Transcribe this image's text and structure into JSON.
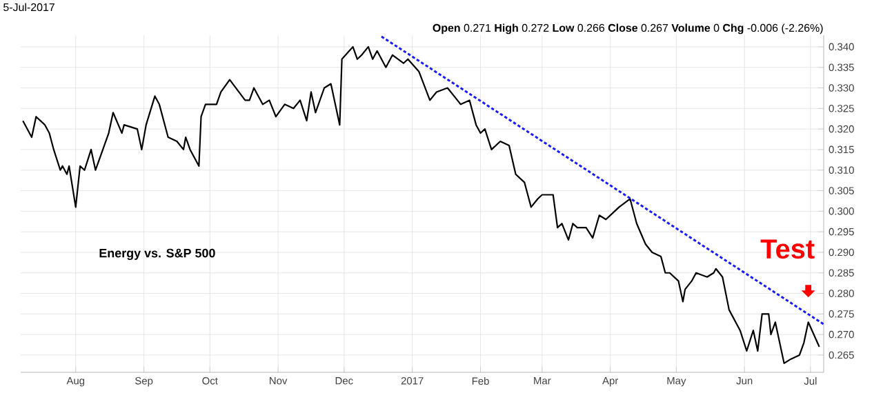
{
  "chart_data": {
    "type": "line",
    "subtitle": "5-Jul-2017",
    "annotations": [
      "Energy vs. S&P 500",
      "**Open** 0.271 **High** 0.272 **Low** 0.266 **Close** 0.267 **Volume** 0 **Chg** -0.006 (-2.26%)",
      {
        "text": "Test",
        "x": "2017-06-30",
        "y": 0.274
      }
    ],
    "xlim": [
      "2016-07-07",
      "2017-07-07"
    ],
    "xticks": [
      {
        "value": "2016-08-01",
        "label": "Aug"
      },
      {
        "value": "2016-09-01",
        "label": "Sep"
      },
      {
        "value": "2016-10-01",
        "label": "Oct"
      },
      {
        "value": "2016-11-01",
        "label": "Nov"
      },
      {
        "value": "2016-12-01",
        "label": "Dec"
      },
      {
        "value": "2017-01-01",
        "label": "2017"
      },
      {
        "value": "2017-02-01",
        "label": "Feb"
      },
      {
        "value": "2017-03-01",
        "label": "Mar"
      },
      {
        "value": "2017-04-01",
        "label": "Apr"
      },
      {
        "value": "2017-05-01",
        "label": "May"
      },
      {
        "value": "2017-06-01",
        "label": "Jun"
      },
      {
        "value": "2017-07-01",
        "label": "Jul"
      }
    ],
    "ylim": [
      0.2608,
      0.3428
    ],
    "yticks": [
      {
        "value": 0.265,
        "label": "0.265"
      },
      {
        "value": 0.27,
        "label": "0.270"
      },
      {
        "value": 0.275,
        "label": "0.275"
      },
      {
        "value": 0.28,
        "label": "0.280"
      },
      {
        "value": 0.285,
        "label": "0.285"
      },
      {
        "value": 0.29,
        "label": "0.290"
      },
      {
        "value": 0.295,
        "label": "0.295"
      },
      {
        "value": 0.3,
        "label": "0.300"
      },
      {
        "value": 0.305,
        "label": "0.305"
      },
      {
        "value": 0.31,
        "label": "0.310"
      },
      {
        "value": 0.315,
        "label": "0.315"
      },
      {
        "value": 0.32,
        "label": "0.320"
      },
      {
        "value": 0.325,
        "label": "0.325"
      },
      {
        "value": 0.33,
        "label": "0.330"
      },
      {
        "value": 0.335,
        "label": "0.335"
      },
      {
        "value": 0.34,
        "label": "0.340"
      }
    ],
    "grid": true,
    "marker": "none",
    "series": [
      {
        "color": "#000000",
        "line_style": "solid",
        "x": [
          "2016-07-08",
          "2016-07-12",
          "2016-07-14",
          "2016-07-18",
          "2016-07-20",
          "2016-07-22",
          "2016-07-25",
          "2016-07-26",
          "2016-07-28",
          "2016-07-29",
          "2016-08-01",
          "2016-08-03",
          "2016-08-05",
          "2016-08-08",
          "2016-08-10",
          "2016-08-12",
          "2016-08-16",
          "2016-08-18",
          "2016-08-22",
          "2016-08-23",
          "2016-08-29",
          "2016-08-31",
          "2016-09-02",
          "2016-09-06",
          "2016-09-08",
          "2016-09-12",
          "2016-09-16",
          "2016-09-19",
          "2016-09-20",
          "2016-09-22",
          "2016-09-26",
          "2016-09-27",
          "2016-09-29",
          "2016-10-04",
          "2016-10-06",
          "2016-10-10",
          "2016-10-17",
          "2016-10-19",
          "2016-10-21",
          "2016-10-25",
          "2016-10-28",
          "2016-10-31",
          "2016-11-04",
          "2016-11-08",
          "2016-11-11",
          "2016-11-14",
          "2016-11-16",
          "2016-11-18",
          "2016-11-22",
          "2016-11-25",
          "2016-11-29",
          "2016-11-30",
          "2016-12-05",
          "2016-12-07",
          "2016-12-09",
          "2016-12-12",
          "2016-12-14",
          "2016-12-16",
          "2016-12-20",
          "2016-12-23",
          "2016-12-28",
          "2016-12-30",
          "2017-01-04",
          "2017-01-09",
          "2017-01-12",
          "2017-01-17",
          "2017-01-20",
          "2017-01-23",
          "2017-01-27",
          "2017-01-30",
          "2017-02-01",
          "2017-02-03",
          "2017-02-06",
          "2017-02-10",
          "2017-02-14",
          "2017-02-17",
          "2017-02-21",
          "2017-02-23",
          "2017-02-24",
          "2017-02-27",
          "2017-03-01",
          "2017-03-06",
          "2017-03-08",
          "2017-03-10",
          "2017-03-13",
          "2017-03-15",
          "2017-03-17",
          "2017-03-21",
          "2017-03-24",
          "2017-03-27",
          "2017-03-30",
          "2017-04-03",
          "2017-04-05",
          "2017-04-10",
          "2017-04-12",
          "2017-04-13",
          "2017-04-17",
          "2017-04-20",
          "2017-04-24",
          "2017-04-26",
          "2017-04-28",
          "2017-05-02",
          "2017-05-04",
          "2017-05-05",
          "2017-05-08",
          "2017-05-10",
          "2017-05-15",
          "2017-05-18",
          "2017-05-19",
          "2017-05-22",
          "2017-05-25",
          "2017-05-30",
          "2017-06-02",
          "2017-06-05",
          "2017-06-07",
          "2017-06-09",
          "2017-06-12",
          "2017-06-13",
          "2017-06-15",
          "2017-06-19",
          "2017-06-22",
          "2017-06-26",
          "2017-06-28",
          "2017-06-30",
          "2017-07-05"
        ],
        "values": [
          0.322,
          0.318,
          0.323,
          0.321,
          0.319,
          0.315,
          0.31,
          0.311,
          0.309,
          0.311,
          0.301,
          0.311,
          0.31,
          0.315,
          0.31,
          0.313,
          0.319,
          0.324,
          0.319,
          0.321,
          0.32,
          0.315,
          0.321,
          0.328,
          0.326,
          0.318,
          0.317,
          0.315,
          0.318,
          0.315,
          0.311,
          0.323,
          0.326,
          0.326,
          0.329,
          0.332,
          0.327,
          0.327,
          0.33,
          0.326,
          0.327,
          0.323,
          0.326,
          0.325,
          0.327,
          0.322,
          0.329,
          0.324,
          0.33,
          0.331,
          0.321,
          0.337,
          0.34,
          0.337,
          0.338,
          0.34,
          0.337,
          0.339,
          0.335,
          0.338,
          0.336,
          0.337,
          0.334,
          0.327,
          0.329,
          0.33,
          0.328,
          0.326,
          0.327,
          0.321,
          0.319,
          0.32,
          0.315,
          0.317,
          0.316,
          0.309,
          0.307,
          0.303,
          0.301,
          0.303,
          0.304,
          0.304,
          0.296,
          0.297,
          0.293,
          0.297,
          0.296,
          0.296,
          0.2935,
          0.299,
          0.298,
          0.3,
          0.301,
          0.303,
          0.299,
          0.297,
          0.292,
          0.29,
          0.289,
          0.285,
          0.285,
          0.283,
          0.278,
          0.281,
          0.283,
          0.285,
          0.284,
          0.285,
          0.286,
          0.284,
          0.276,
          0.271,
          0.266,
          0.271,
          0.266,
          0.275,
          0.275,
          0.27,
          0.273,
          0.263,
          0.264,
          0.265,
          0.268,
          0.273,
          0.267
        ]
      },
      {
        "color": "#1a1aff",
        "line_style": "dashed",
        "x": [
          "2016-12-18",
          "2017-07-07"
        ],
        "values": [
          0.3425,
          0.2725
        ]
      }
    ]
  }
}
